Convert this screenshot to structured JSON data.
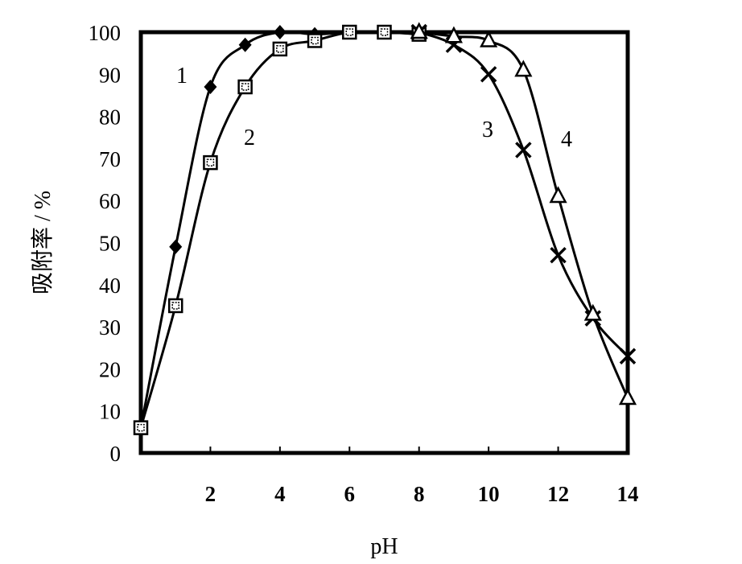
{
  "chart_data": {
    "type": "line",
    "title": "",
    "xlabel": "pH",
    "ylabel": "吸附率 / %",
    "xlim": [
      0,
      14
    ],
    "ylim": [
      0,
      100
    ],
    "xticks": [
      2,
      4,
      6,
      8,
      10,
      12,
      14
    ],
    "yticks": [
      0,
      10,
      20,
      30,
      40,
      50,
      60,
      70,
      80,
      90,
      100
    ],
    "grid": false,
    "legend": "none",
    "series": [
      {
        "curve_label": "1",
        "marker": "diamond",
        "x": [
          0,
          1,
          2,
          3,
          4,
          5,
          6,
          7,
          8
        ],
        "y": [
          6,
          49,
          87,
          97,
          100,
          99.5,
          100,
          100,
          100
        ]
      },
      {
        "curve_label": "2",
        "marker": "square",
        "x": [
          0,
          1,
          2,
          3,
          4,
          5,
          6,
          7,
          8
        ],
        "y": [
          6,
          35,
          69,
          87,
          96,
          98,
          100,
          100,
          99.5
        ]
      },
      {
        "curve_label": "3",
        "marker": "cross",
        "x": [
          8,
          9,
          10,
          11,
          12,
          13,
          14
        ],
        "y": [
          100,
          97,
          90,
          72,
          47,
          32,
          23
        ]
      },
      {
        "curve_label": "4",
        "marker": "triangle",
        "x": [
          8,
          9,
          10,
          11,
          12,
          13,
          14
        ],
        "y": [
          100,
          99,
          98,
          91,
          61,
          33,
          13
        ]
      }
    ]
  }
}
